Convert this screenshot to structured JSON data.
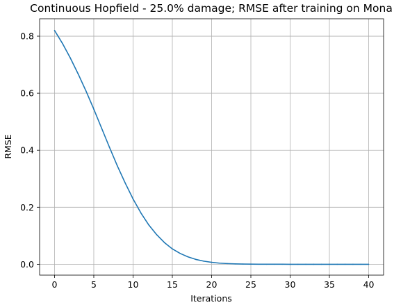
{
  "chart_data": {
    "type": "line",
    "title": "Continuous Hopfield - 25.0% damage; RMSE after training on Mona",
    "xlabel": "Iterations",
    "ylabel": "RMSE",
    "xlim": [
      -1.9,
      41.9
    ],
    "ylim": [
      -0.038,
      0.861
    ],
    "xticks": [
      0,
      5,
      10,
      15,
      20,
      25,
      30,
      35,
      40
    ],
    "yticks": [
      0.0,
      0.2,
      0.4,
      0.6,
      0.8
    ],
    "xtick_labels": [
      "0",
      "5",
      "10",
      "15",
      "20",
      "25",
      "30",
      "35",
      "40"
    ],
    "ytick_labels": [
      "0.0",
      "0.2",
      "0.4",
      "0.6",
      "0.8"
    ],
    "grid": true,
    "series": [
      {
        "color": "#1f77b4",
        "x": [
          0,
          1,
          2,
          3,
          4,
          5,
          6,
          7,
          8,
          9,
          10,
          11,
          12,
          13,
          14,
          15,
          16,
          17,
          18,
          19,
          20,
          21,
          22,
          23,
          24,
          25,
          26,
          27,
          28,
          29,
          30,
          31,
          32,
          33,
          34,
          35,
          36,
          37,
          38,
          39,
          40
        ],
        "y": [
          0.82,
          0.775,
          0.724,
          0.668,
          0.608,
          0.544,
          0.477,
          0.41,
          0.345,
          0.285,
          0.229,
          0.18,
          0.138,
          0.104,
          0.076,
          0.054,
          0.038,
          0.026,
          0.017,
          0.011,
          0.007,
          0.004,
          0.0025,
          0.0015,
          0.0009,
          0.0005,
          0.0003,
          0.0002,
          0.0001,
          0.0001,
          0,
          0,
          0,
          0,
          0,
          0,
          0,
          0,
          0,
          0,
          0
        ]
      }
    ]
  }
}
